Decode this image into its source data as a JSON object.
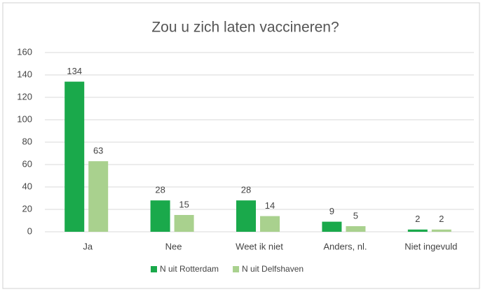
{
  "chart_data": {
    "type": "bar",
    "title": "Zou u zich laten vaccineren?",
    "categories": [
      "Ja",
      "Nee",
      "Weet ik niet",
      "Anders, nl.",
      "Niet ingevuld"
    ],
    "series": [
      {
        "name": "N uit Rotterdam",
        "color": "#1aa94b",
        "values": [
          134,
          28,
          28,
          9,
          2
        ]
      },
      {
        "name": "N uit Delfshaven",
        "color": "#a9d18e",
        "values": [
          63,
          15,
          14,
          5,
          2
        ]
      }
    ],
    "ylim": [
      0,
      160
    ],
    "yticks": [
      0,
      20,
      40,
      60,
      80,
      100,
      120,
      140,
      160
    ],
    "grid": true,
    "data_labels": true,
    "legend": "bottom"
  }
}
